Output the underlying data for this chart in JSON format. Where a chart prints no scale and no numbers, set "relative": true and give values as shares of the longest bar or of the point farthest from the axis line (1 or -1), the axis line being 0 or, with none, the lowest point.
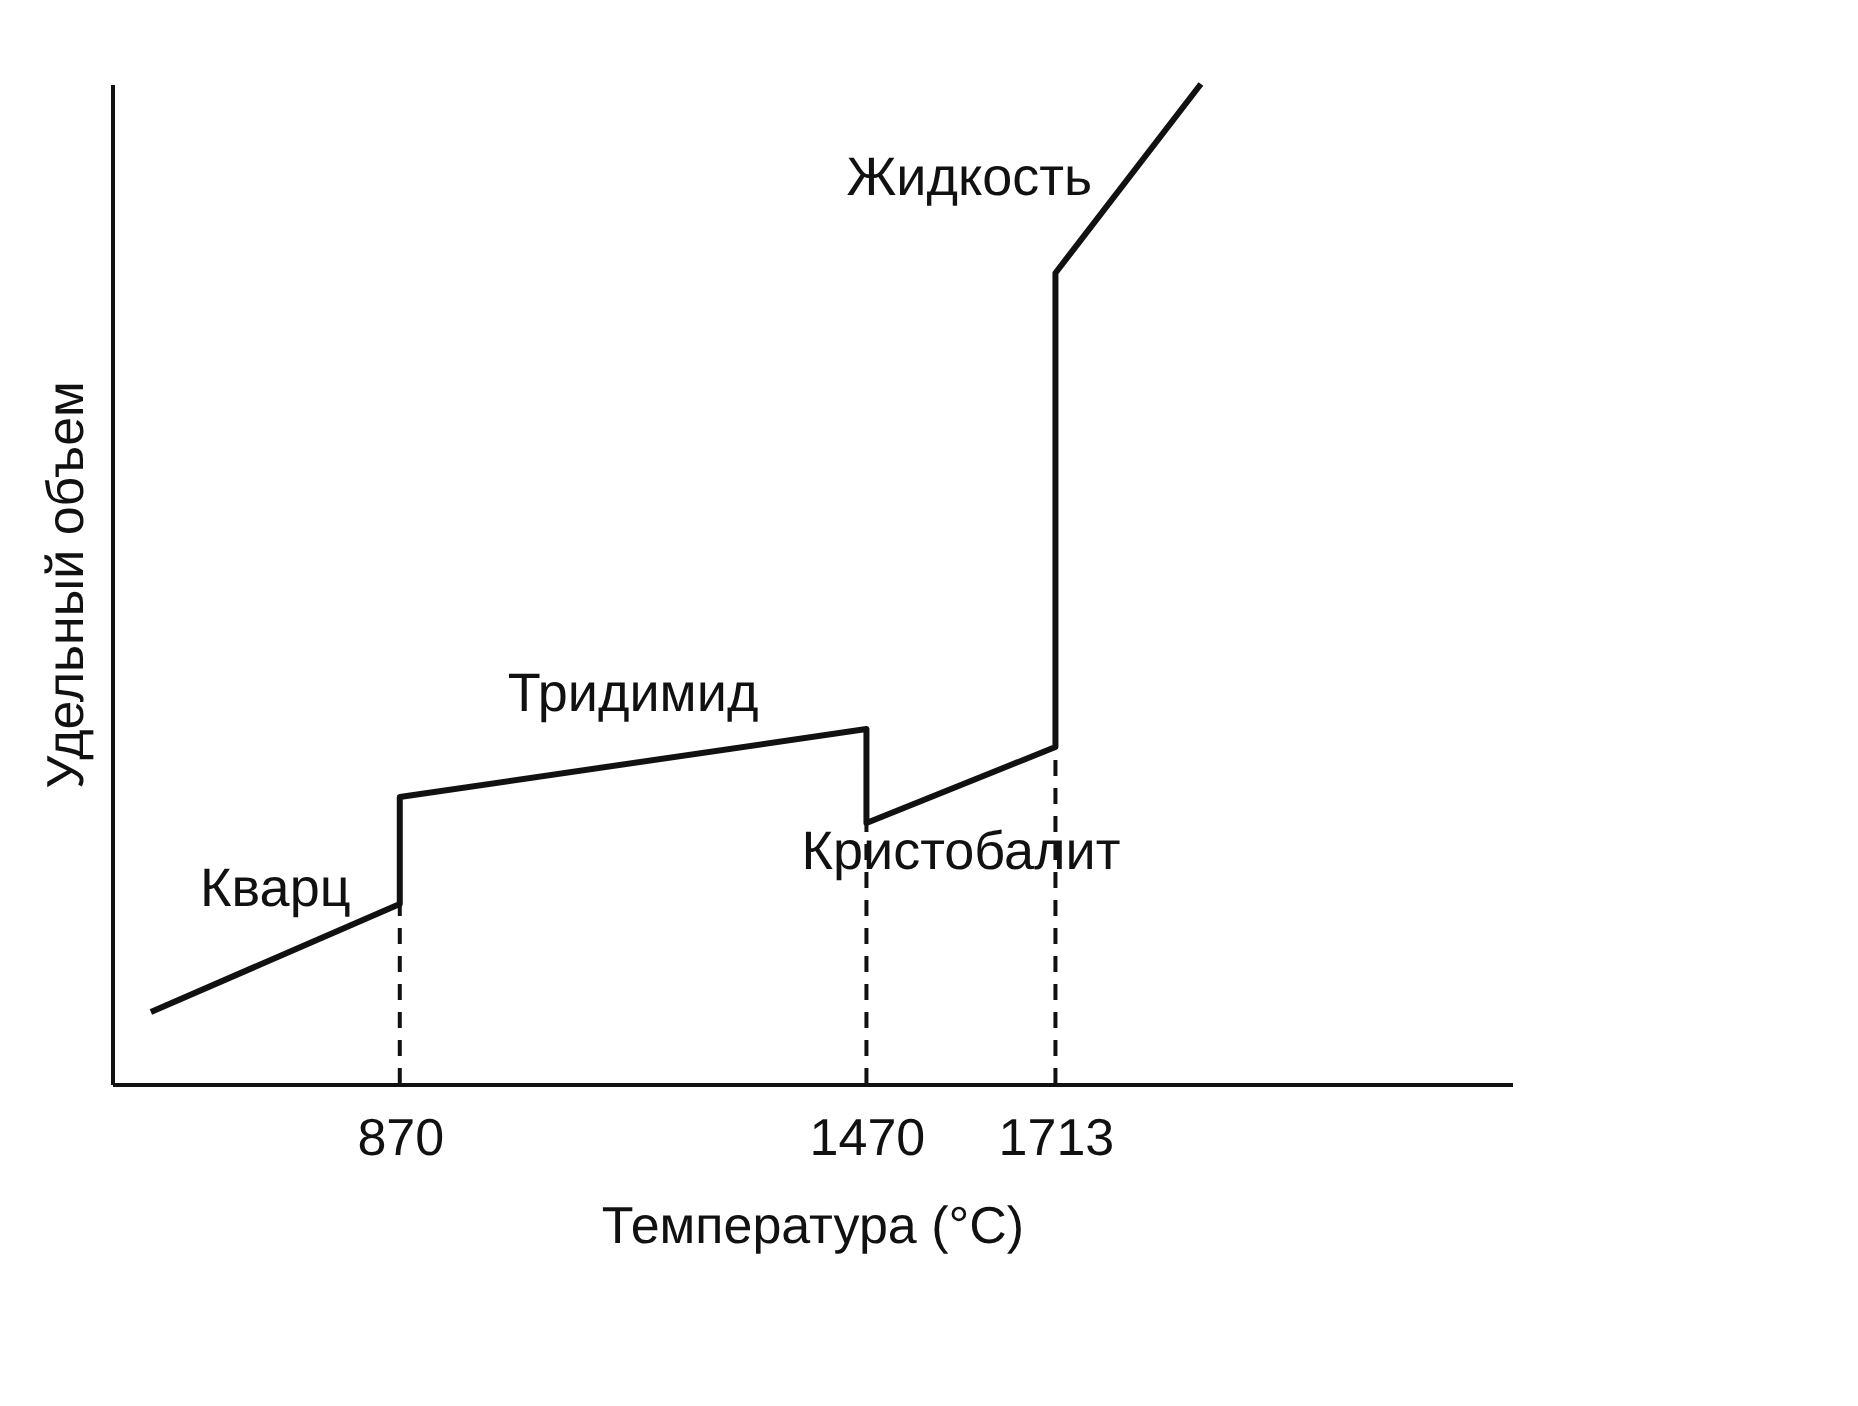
{
  "chart_data": {
    "type": "line",
    "relative": true,
    "xlabel": "Температура (°C)",
    "ylabel": "Удельный объем",
    "xlim": [
      500,
      2300
    ],
    "xticks": [
      870,
      1470,
      1713
    ],
    "series": [
      {
        "color": "#111111",
        "x": [
          550,
          870,
          870,
          1470,
          1470,
          1713,
          1713,
          1900
        ],
        "values": [
          0.072,
          0.18,
          0.287,
          0.355,
          0.261,
          0.337,
          0.811,
          1
        ]
      }
    ],
    "ref_lines": [
      {
        "axis": "x",
        "value": 870,
        "line_style": "dashed"
      },
      {
        "axis": "x",
        "value": 1470,
        "line_style": "dashed"
      },
      {
        "axis": "x",
        "value": 1713,
        "line_style": "dashed"
      }
    ],
    "annotations": [
      "Кварц",
      "Тридимид",
      "Кристобалит",
      "Жидкость"
    ],
    "grid": false,
    "marker": "none",
    "line_style": "solid"
  }
}
